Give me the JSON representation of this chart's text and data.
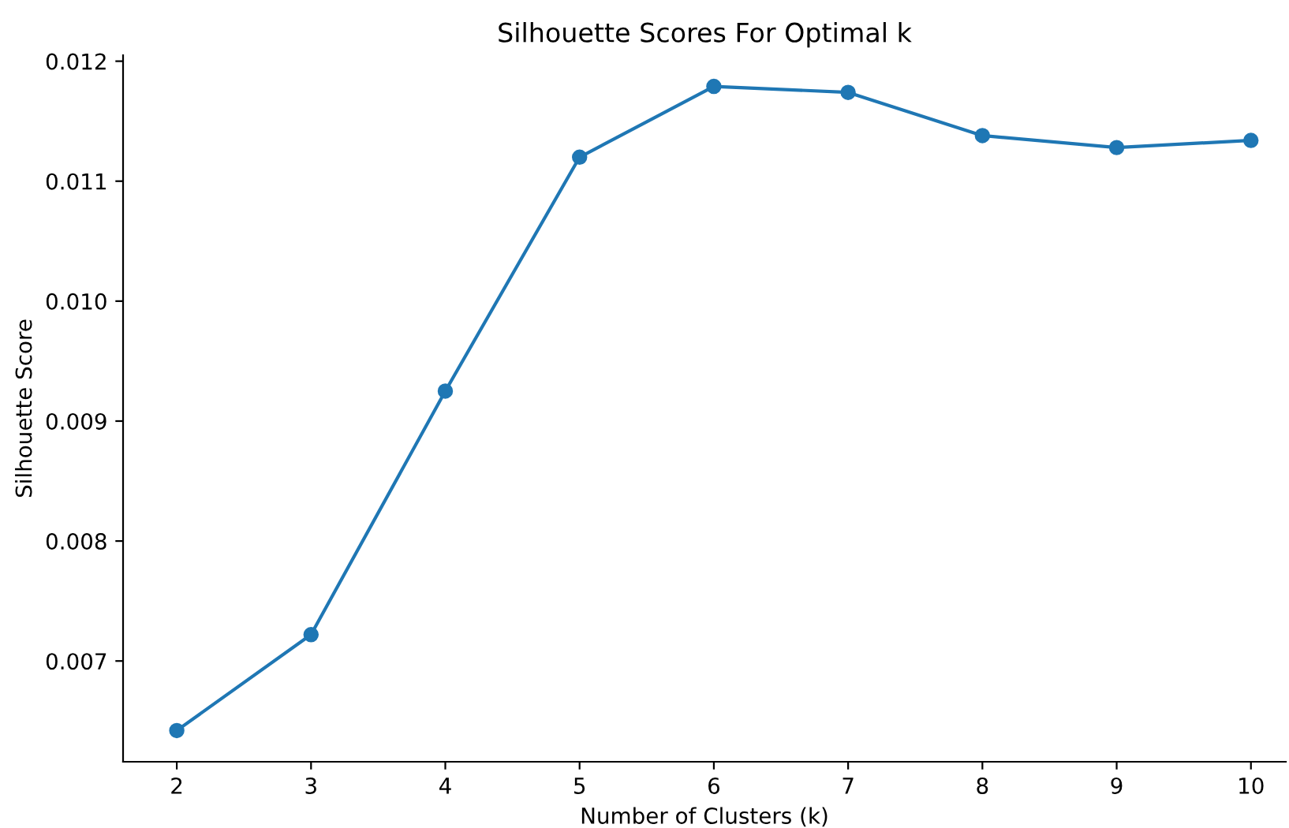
{
  "chart_data": {
    "type": "line",
    "title": "Silhouette Scores For Optimal k",
    "xlabel": "Number of Clusters (k)",
    "ylabel": "Silhouette Score",
    "x": [
      2,
      3,
      4,
      5,
      6,
      7,
      8,
      9,
      10
    ],
    "series": [
      {
        "color": "#1f77b4",
        "values": [
          0.00642,
          0.00722,
          0.00925,
          0.0112,
          0.01179,
          0.01174,
          0.01138,
          0.01128,
          0.01134
        ]
      }
    ],
    "xlim": [
      1.6,
      10.26
    ],
    "xticks": [
      2,
      3,
      4,
      5,
      6,
      7,
      8,
      9,
      10
    ],
    "ylim": [
      0.00616,
      0.01205
    ],
    "yticks": [
      0.007,
      0.008,
      0.009,
      {
        "value": 0.01,
        "label": "0.010"
      },
      0.011,
      0.012
    ],
    "marker": "circle",
    "line_style": "solid",
    "grid": false
  }
}
